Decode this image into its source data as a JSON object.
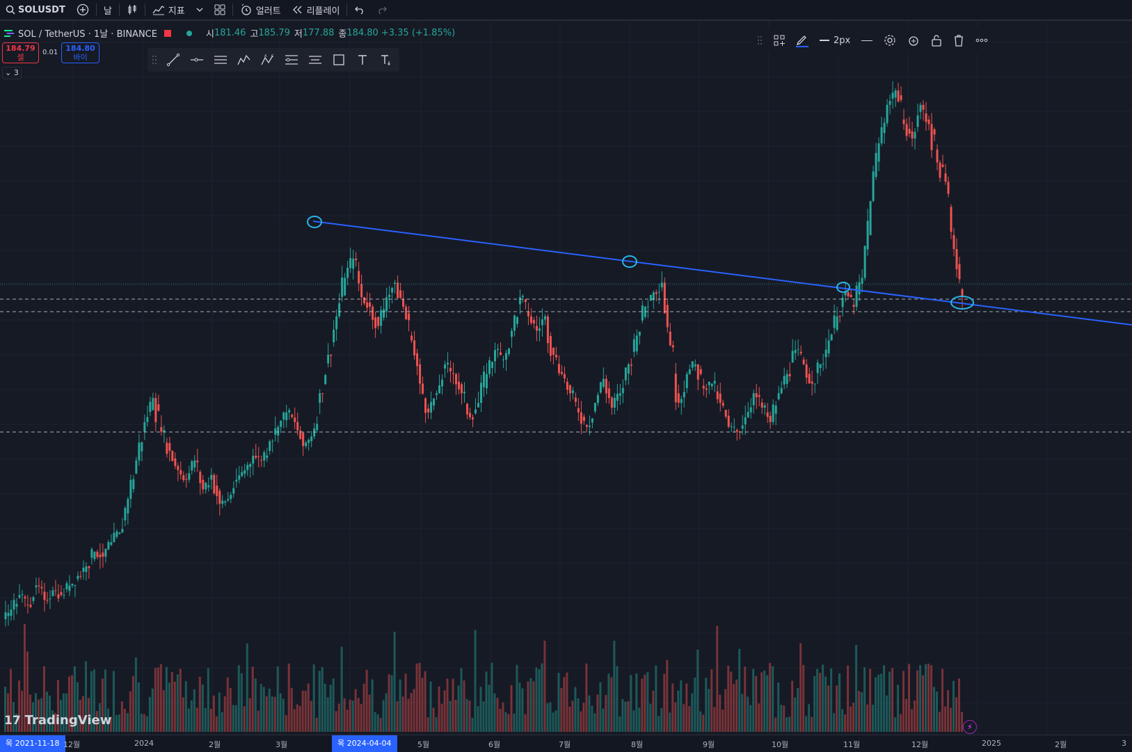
{
  "toolbar": {
    "symbol": "SOLUSDT",
    "interval": "날",
    "indicators_label": "지표",
    "alert_label": "얼러트",
    "replay_label": "리플레이"
  },
  "legend": {
    "title": "SOL / TetherUS · 1날 · BINANCE",
    "open_key": "시",
    "open": "181.46",
    "high_key": "고",
    "high": "185.79",
    "low_key": "저",
    "low": "177.88",
    "close_key": "종",
    "close": "184.80",
    "change": "+3.35 (+1.85%)"
  },
  "trade": {
    "sell_price": "184.79",
    "sell_label": "셀",
    "spread": "0.01",
    "buy_price": "184.80",
    "buy_label": "바이"
  },
  "collapse_count": "3",
  "propbar": {
    "width_label": "2px"
  },
  "xaxis": {
    "cursor_left": "목 2021-11-18",
    "cursor_mid": "목 2024-04-04",
    "ticks": [
      "12월",
      "2024",
      "2월",
      "3월",
      "5월",
      "6월",
      "7월",
      "8월",
      "9월",
      "10월",
      "11월",
      "12월",
      "2025",
      "2월",
      "3"
    ]
  },
  "logo_text": "TradingView",
  "colors": {
    "up": "#26a69a",
    "down": "#ef5350",
    "trendline": "#2962ff",
    "circle": "#2bb3e6",
    "bg": "#161a25"
  },
  "chart_data": {
    "type": "candlestick",
    "price_min": 1.0,
    "price_max": 10.0,
    "closes": [
      1.9,
      2.1,
      2.4,
      2.2,
      2.6,
      2.3,
      2.5,
      2.4,
      2.6,
      2.8,
      3.0,
      3.3,
      3.2,
      3.5,
      3.7,
      4.4,
      5.2,
      6.0,
      6.5,
      5.8,
      5.4,
      5.0,
      4.8,
      5.2,
      4.6,
      4.9,
      4.3,
      4.4,
      4.8,
      5.0,
      5.3,
      5.2,
      5.6,
      5.9,
      6.2,
      6.0,
      5.5,
      5.7,
      6.6,
      7.4,
      8.2,
      9.0,
      9.4,
      8.6,
      8.4,
      8.0,
      8.6,
      8.9,
      8.4,
      7.7,
      6.8,
      6.2,
      6.6,
      7.2,
      7.0,
      6.6,
      6.1,
      6.4,
      7.0,
      7.5,
      7.3,
      7.9,
      8.6,
      8.2,
      7.9,
      8.2,
      7.4,
      7.0,
      6.6,
      6.2,
      5.9,
      6.4,
      6.9,
      6.3,
      6.6,
      7.2,
      7.8,
      8.4,
      8.7,
      8.9,
      7.6,
      6.4,
      7.0,
      7.2,
      6.7,
      6.8,
      6.4,
      5.9,
      5.8,
      6.1,
      6.6,
      6.3,
      6.0,
      6.6,
      7.0,
      7.5,
      7.2,
      6.8,
      7.2,
      7.7,
      8.2,
      8.7,
      8.4,
      9.0,
      10.6,
      11.8,
      12.6,
      12.9,
      12.2,
      11.9,
      12.6,
      12.2,
      11.4,
      11.0,
      9.6,
      8.6
    ]
  }
}
